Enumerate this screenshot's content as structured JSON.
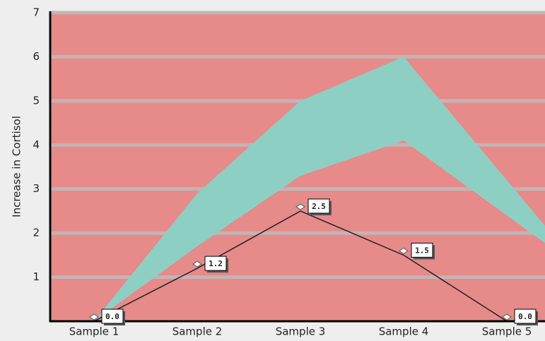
{
  "chart_data": {
    "type": "line",
    "y_label": "Increase in Cortisol",
    "categories": [
      "Sample 1",
      "Sample 2",
      "Sample 3",
      "Sample 4",
      "Sample 5"
    ],
    "ylim": [
      0,
      7
    ],
    "yticks": [
      1,
      2,
      3,
      4,
      5,
      6,
      7
    ],
    "grid": true,
    "background": "#e68a8a",
    "series": [
      {
        "type": "arearange",
        "color": "#8ecfc4",
        "low": [
          0,
          1.7,
          3.3,
          4.1,
          2.4
        ],
        "high": [
          0,
          2.9,
          5,
          6,
          3.2
        ]
      },
      {
        "type": "line",
        "color": "#222222",
        "values": [
          0,
          1.2,
          2.5,
          1.5,
          0
        ],
        "value_labels": [
          "0.0",
          "1.2",
          "2.5",
          "1.5",
          "0.0"
        ]
      }
    ]
  }
}
